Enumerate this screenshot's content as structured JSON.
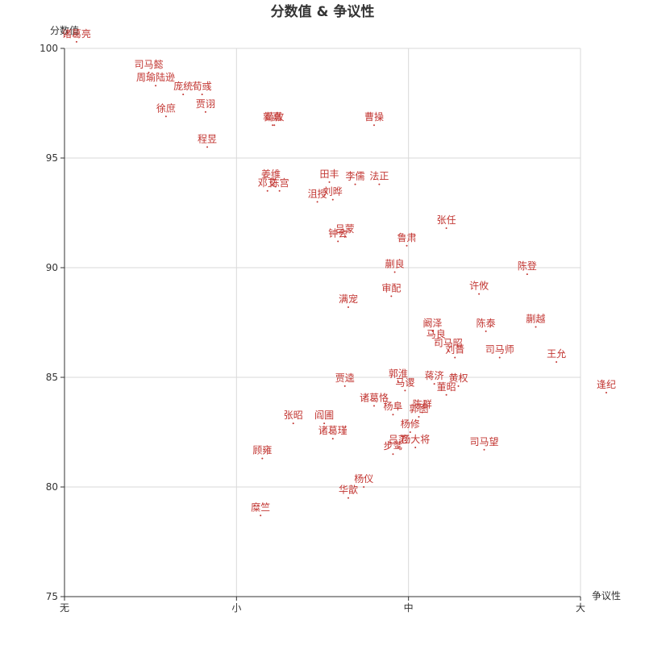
{
  "chart_data": {
    "type": "scatter",
    "title": "分数值 & 争议性",
    "xlabel": "争议性",
    "ylabel": "分数值",
    "x_categories": [
      "无",
      "小",
      "中",
      "大"
    ],
    "xlim": [
      0,
      3
    ],
    "ylim": [
      75,
      100
    ],
    "y_ticks": [
      75,
      80,
      85,
      90,
      95,
      100
    ],
    "grid": true,
    "legend": "none",
    "label_color": "#c23531",
    "point_color": "#c23531",
    "points": [
      {
        "name": "诸葛亮",
        "x": 0.07,
        "y": 100.3
      },
      {
        "name": "司马懿",
        "x": 0.49,
        "y": 98.9
      },
      {
        "name": "周瑜陆逊",
        "x": 0.53,
        "y": 98.3
      },
      {
        "name": "庞统",
        "x": 0.69,
        "y": 97.9
      },
      {
        "name": "荀彧",
        "x": 0.8,
        "y": 97.9
      },
      {
        "name": "贾诩",
        "x": 0.82,
        "y": 97.1
      },
      {
        "name": "徐庶",
        "x": 0.59,
        "y": 96.9
      },
      {
        "name": "郭嘉",
        "x": 1.21,
        "y": 96.5
      },
      {
        "name": "荀攸",
        "x": 1.22,
        "y": 96.5
      },
      {
        "name": "曹操",
        "x": 1.8,
        "y": 96.5
      },
      {
        "name": "程昱",
        "x": 0.83,
        "y": 95.5
      },
      {
        "name": "姜维",
        "x": 1.2,
        "y": 93.9
      },
      {
        "name": "邓艾",
        "x": 1.18,
        "y": 93.5
      },
      {
        "name": "陈宫",
        "x": 1.25,
        "y": 93.5
      },
      {
        "name": "田丰",
        "x": 1.54,
        "y": 93.9
      },
      {
        "name": "李儒",
        "x": 1.69,
        "y": 93.8
      },
      {
        "name": "法正",
        "x": 1.83,
        "y": 93.8
      },
      {
        "name": "沮授",
        "x": 1.47,
        "y": 93.0
      },
      {
        "name": "刘晔",
        "x": 1.56,
        "y": 93.1
      },
      {
        "name": "张任",
        "x": 2.22,
        "y": 91.8
      },
      {
        "name": "吕蒙",
        "x": 1.63,
        "y": 91.4
      },
      {
        "name": "钟会",
        "x": 1.59,
        "y": 91.2
      },
      {
        "name": "鲁肃",
        "x": 1.99,
        "y": 91.0
      },
      {
        "name": "蒯良",
        "x": 1.92,
        "y": 89.8
      },
      {
        "name": "陈登",
        "x": 2.69,
        "y": 89.7
      },
      {
        "name": "许攸",
        "x": 2.41,
        "y": 88.8
      },
      {
        "name": "审配",
        "x": 1.9,
        "y": 88.7
      },
      {
        "name": "满宠",
        "x": 1.65,
        "y": 88.2
      },
      {
        "name": "蒯越",
        "x": 2.74,
        "y": 87.3
      },
      {
        "name": "阚泽",
        "x": 2.14,
        "y": 87.1
      },
      {
        "name": "陈泰",
        "x": 2.45,
        "y": 87.1
      },
      {
        "name": "马良",
        "x": 2.16,
        "y": 86.6
      },
      {
        "name": "司马昭",
        "x": 2.23,
        "y": 86.2
      },
      {
        "name": "刘晋",
        "x": 2.27,
        "y": 85.9
      },
      {
        "name": "司马师",
        "x": 2.53,
        "y": 85.9
      },
      {
        "name": "王允",
        "x": 2.86,
        "y": 85.7
      },
      {
        "name": "贾逵",
        "x": 1.63,
        "y": 84.6
      },
      {
        "name": "郭淮",
        "x": 1.94,
        "y": 84.8
      },
      {
        "name": "蒋济",
        "x": 2.15,
        "y": 84.7
      },
      {
        "name": "黄权",
        "x": 2.29,
        "y": 84.6
      },
      {
        "name": "马谡",
        "x": 1.98,
        "y": 84.4
      },
      {
        "name": "董昭",
        "x": 2.22,
        "y": 84.2
      },
      {
        "name": "逢纪",
        "x": 3.15,
        "y": 84.3
      },
      {
        "name": "诸葛恪",
        "x": 1.8,
        "y": 83.7
      },
      {
        "name": "杨阜",
        "x": 1.91,
        "y": 83.3
      },
      {
        "name": "陈群",
        "x": 2.08,
        "y": 83.4
      },
      {
        "name": "郭图",
        "x": 2.06,
        "y": 83.2
      },
      {
        "name": "张昭",
        "x": 1.33,
        "y": 82.9
      },
      {
        "name": "阎圃",
        "x": 1.51,
        "y": 82.9
      },
      {
        "name": "杨修",
        "x": 2.01,
        "y": 82.5
      },
      {
        "name": "诸葛瑾",
        "x": 1.56,
        "y": 82.2
      },
      {
        "name": "吕范",
        "x": 1.94,
        "y": 81.8
      },
      {
        "name": "杨大将",
        "x": 2.04,
        "y": 81.8
      },
      {
        "name": "司马望",
        "x": 2.44,
        "y": 81.7
      },
      {
        "name": "步骘",
        "x": 1.91,
        "y": 81.5
      },
      {
        "name": "顾雍",
        "x": 1.15,
        "y": 81.3
      },
      {
        "name": "杨仪",
        "x": 1.74,
        "y": 80.0
      },
      {
        "name": "华歆",
        "x": 1.65,
        "y": 79.5
      },
      {
        "name": "糜竺",
        "x": 1.14,
        "y": 78.7
      }
    ]
  }
}
